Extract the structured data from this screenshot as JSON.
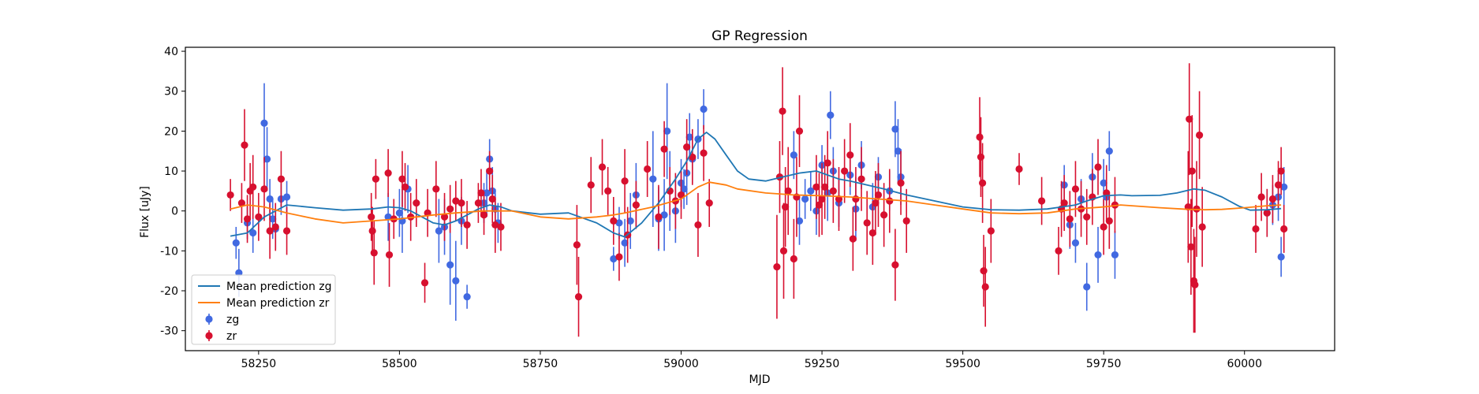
{
  "chart_data": {
    "type": "scatter",
    "title": "GP Regression",
    "xlabel": "MJD",
    "ylabel": "Flux [uJy]",
    "xlim": [
      58120,
      60160
    ],
    "ylim": [
      -35,
      41
    ],
    "x_ticks": [
      58250,
      58500,
      58750,
      59000,
      59250,
      59500,
      59750,
      60000
    ],
    "y_ticks": [
      -30,
      -20,
      -10,
      0,
      10,
      20,
      30,
      40
    ],
    "grid": false,
    "legend_position": "lower-left",
    "lines": [
      {
        "name": "Mean prediction zg",
        "color": "#1f77b4",
        "x": [
          58200,
          58230,
          58260,
          58300,
          58350,
          58400,
          58450,
          58480,
          58500,
          58520,
          58540,
          58560,
          58580,
          58600,
          58620,
          58640,
          58660,
          58680,
          58700,
          58750,
          58800,
          58850,
          58880,
          58900,
          58930,
          58960,
          58990,
          59010,
          59030,
          59045,
          59060,
          59080,
          59100,
          59120,
          59150,
          59180,
          59210,
          59240,
          59260,
          59280,
          59300,
          59330,
          59360,
          59400,
          59450,
          59500,
          59550,
          59600,
          59650,
          59700,
          59720,
          59750,
          59780,
          59800,
          59850,
          59880,
          59910,
          59930,
          59960,
          59990,
          60010,
          60040,
          60065
        ],
        "y": [
          -6.3,
          -5.5,
          -1.5,
          1.5,
          0.8,
          0.2,
          0.5,
          1.0,
          0.8,
          0.0,
          -1.5,
          -3.0,
          -3.5,
          -2.5,
          -1.0,
          0.5,
          1.5,
          1.0,
          0.0,
          -0.8,
          -0.5,
          -3.0,
          -5.5,
          -6.5,
          -3.0,
          2.0,
          8.0,
          12.5,
          18.0,
          19.7,
          18.0,
          14.0,
          10.0,
          8.0,
          7.5,
          8.5,
          9.5,
          10.0,
          9.0,
          8.0,
          7.5,
          6.5,
          5.5,
          4.0,
          2.5,
          1.0,
          0.3,
          0.2,
          0.5,
          1.5,
          2.5,
          3.8,
          4.0,
          3.8,
          3.9,
          4.5,
          5.5,
          5.2,
          3.5,
          1.2,
          0.2,
          0.3,
          0.6
        ]
      },
      {
        "name": "Mean prediction zr",
        "color": "#ff7f0e",
        "x": [
          58200,
          58230,
          58260,
          58300,
          58350,
          58400,
          58450,
          58500,
          58530,
          58560,
          58600,
          58650,
          58700,
          58750,
          58800,
          58850,
          58880,
          58900,
          58950,
          59000,
          59030,
          59050,
          59080,
          59100,
          59150,
          59200,
          59250,
          59300,
          59350,
          59400,
          59450,
          59500,
          59550,
          59600,
          59650,
          59700,
          59750,
          59780,
          59800,
          59850,
          59900,
          59930,
          59960,
          60000,
          60040,
          60065
        ],
        "y": [
          0.5,
          1.5,
          1.0,
          -0.5,
          -2.0,
          -3.0,
          -2.5,
          -2.0,
          -1.5,
          -1.0,
          -0.5,
          0.0,
          0.0,
          -1.5,
          -2.0,
          -1.5,
          -1.0,
          -0.5,
          1.0,
          3.0,
          6.0,
          7.2,
          6.5,
          5.5,
          4.5,
          4.0,
          3.8,
          3.5,
          3.0,
          2.5,
          1.5,
          0.5,
          -0.5,
          -0.7,
          -0.5,
          0.5,
          1.0,
          1.5,
          1.3,
          0.8,
          0.4,
          0.3,
          0.4,
          0.8,
          1.3,
          1.5
        ]
      }
    ],
    "series": [
      {
        "name": "zg",
        "color": "#4169e1",
        "x": [
          58210,
          58215,
          58230,
          58240,
          58260,
          58265,
          58270,
          58275,
          58280,
          58290,
          58300,
          58480,
          58500,
          58505,
          58515,
          58570,
          58580,
          58590,
          58600,
          58610,
          58620,
          58650,
          58655,
          58660,
          58665,
          58670,
          58675,
          58880,
          58890,
          58900,
          58910,
          58920,
          58950,
          58960,
          58970,
          58975,
          58980,
          58990,
          59000,
          59005,
          59010,
          59015,
          59020,
          59030,
          59040,
          59200,
          59210,
          59220,
          59230,
          59240,
          59250,
          59260,
          59265,
          59270,
          59280,
          59300,
          59310,
          59320,
          59340,
          59350,
          59370,
          59380,
          59385,
          59390,
          59680,
          59690,
          59700,
          59710,
          59720,
          59730,
          59740,
          59750,
          59755,
          59760,
          59770,
          60040,
          60050,
          60060,
          60065,
          60070
        ],
        "y": [
          -8.0,
          -15.5,
          -3.0,
          -5.5,
          22.0,
          13.0,
          3.0,
          -2.0,
          -4.5,
          3.0,
          3.5,
          -1.5,
          -0.5,
          -2.5,
          5.5,
          -5.0,
          -4.0,
          -13.5,
          -17.5,
          -2.5,
          -21.5,
          2.0,
          4.5,
          13.0,
          5.0,
          0.5,
          -3.0,
          -12.0,
          -3.0,
          -8.0,
          -2.5,
          4.0,
          8.0,
          -2.0,
          -1.0,
          20.0,
          5.0,
          0.0,
          7.0,
          5.5,
          9.5,
          18.5,
          13.0,
          18.0,
          25.5,
          14.0,
          -2.5,
          3.0,
          5.0,
          0.0,
          11.5,
          4.5,
          24.0,
          10.0,
          2.0,
          9.0,
          0.5,
          11.5,
          1.0,
          8.5,
          5.0,
          20.5,
          15.0,
          8.5,
          6.5,
          -3.5,
          -8.0,
          3.0,
          -19.0,
          8.5,
          -11.0,
          7.0,
          3.5,
          15.0,
          -11.0,
          -0.5,
          1.5,
          3.5,
          -11.5,
          6.0
        ],
        "err": [
          4.0,
          6.0,
          4.0,
          5.0,
          10.0,
          8.0,
          5.0,
          5.0,
          5.0,
          4.0,
          4.0,
          6.0,
          6.0,
          8.0,
          6.0,
          8.0,
          7.0,
          10.0,
          10.0,
          6.0,
          3.0,
          5.0,
          6.0,
          5.0,
          6.0,
          5.0,
          5.0,
          3.0,
          4.0,
          6.0,
          7.0,
          8.0,
          12.0,
          8.0,
          9.0,
          12.0,
          10.0,
          8.0,
          6.0,
          5.0,
          8.0,
          6.0,
          6.0,
          5.0,
          5.0,
          6.0,
          6.0,
          5.0,
          5.0,
          6.0,
          5.0,
          7.0,
          6.0,
          6.0,
          6.0,
          5.0,
          8.0,
          6.0,
          6.0,
          5.0,
          5.0,
          7.0,
          8.0,
          7.0,
          5.0,
          6.0,
          5.0,
          5.0,
          6.0,
          6.0,
          7.0,
          6.0,
          6.0,
          5.0,
          6.0,
          6.0,
          5.0,
          6.0,
          5.0,
          5.0
        ]
      },
      {
        "name": "zr",
        "color": "#d7102f",
        "x": [
          58200,
          58220,
          58225,
          58230,
          58235,
          58240,
          58250,
          58260,
          58270,
          58280,
          58290,
          58300,
          58450,
          58452,
          58455,
          58458,
          58480,
          58482,
          58490,
          58505,
          58510,
          58520,
          58530,
          58545,
          58550,
          58565,
          58580,
          58590,
          58600,
          58610,
          58620,
          58640,
          58645,
          58650,
          58660,
          58665,
          58670,
          58680,
          58815,
          58818,
          58840,
          58860,
          58870,
          58880,
          58890,
          58900,
          58905,
          58920,
          58940,
          58960,
          58970,
          58980,
          58990,
          59000,
          59010,
          59020,
          59030,
          59040,
          59050,
          59170,
          59175,
          59180,
          59182,
          59185,
          59190,
          59200,
          59205,
          59210,
          59240,
          59245,
          59250,
          59255,
          59260,
          59270,
          59280,
          59290,
          59300,
          59305,
          59310,
          59320,
          59330,
          59340,
          59345,
          59350,
          59360,
          59370,
          59380,
          59390,
          59400,
          59530,
          59532,
          59535,
          59537,
          59540,
          59550,
          59600,
          59640,
          59670,
          59675,
          59680,
          59690,
          59700,
          59710,
          59720,
          59730,
          59740,
          59750,
          59755,
          59760,
          59770,
          59900,
          59902,
          59905,
          59907,
          59910,
          59912,
          59915,
          59920,
          59925,
          60020,
          60030,
          60040,
          60050,
          60060,
          60065,
          60070
        ],
        "y": [
          4.0,
          2.0,
          16.5,
          -2.0,
          5.0,
          6.0,
          -1.5,
          5.5,
          -5.0,
          -4.0,
          8.0,
          -5.0,
          -1.5,
          -5.0,
          -10.5,
          8.0,
          9.5,
          -11.0,
          -2.0,
          8.0,
          6.0,
          -1.5,
          2.0,
          -18.0,
          -0.5,
          5.5,
          -1.5,
          0.5,
          2.5,
          2.0,
          -3.5,
          2.0,
          4.5,
          -1.0,
          10.0,
          3.0,
          -3.5,
          -4.0,
          -8.5,
          -21.5,
          6.5,
          11.0,
          5.0,
          -2.5,
          -11.5,
          7.5,
          -6.0,
          1.5,
          10.5,
          -1.5,
          15.5,
          5.0,
          2.5,
          4.0,
          16.0,
          13.5,
          -3.5,
          14.5,
          2.0,
          -14.0,
          8.5,
          25.0,
          -10.0,
          1.0,
          5.0,
          -12.0,
          3.5,
          20.0,
          6.0,
          1.5,
          3.0,
          6.0,
          12.0,
          5.0,
          3.0,
          10.0,
          14.0,
          -7.0,
          3.0,
          8.0,
          -3.0,
          -5.5,
          2.0,
          4.0,
          -1.0,
          2.5,
          -13.5,
          7.0,
          -2.5,
          18.5,
          13.5,
          7.0,
          -15.0,
          -19.0,
          -5.0,
          10.5,
          2.5,
          -10.0,
          0.5,
          2.0,
          -2.0,
          5.5,
          0.5,
          -1.5,
          3.5,
          11.0,
          -4.0,
          4.5,
          -2.5,
          1.5,
          1.0,
          23.0,
          -9.0,
          10.0,
          -17.5,
          -18.5,
          0.5,
          19.0,
          -4.0,
          -4.5,
          3.5,
          -0.5,
          3.0,
          6.5,
          10.0,
          -4.5
        ],
        "err": [
          4.0,
          5.0,
          9.0,
          6.0,
          7.0,
          8.0,
          6.0,
          8.0,
          7.0,
          6.0,
          7.0,
          6.0,
          6.0,
          6.0,
          8.0,
          5.0,
          6.0,
          8.0,
          5.0,
          7.0,
          6.0,
          6.0,
          6.0,
          5.0,
          6.0,
          7.0,
          6.0,
          6.0,
          5.0,
          6.0,
          6.0,
          5.0,
          6.0,
          5.0,
          5.0,
          6.0,
          7.0,
          6.0,
          10.0,
          10.0,
          7.0,
          7.0,
          6.0,
          6.0,
          6.0,
          8.0,
          7.0,
          6.0,
          7.0,
          8.0,
          7.0,
          6.0,
          7.0,
          6.0,
          7.0,
          7.0,
          8.0,
          7.0,
          6.0,
          13.0,
          9.0,
          11.0,
          12.0,
          10.0,
          11.0,
          10.0,
          10.0,
          9.0,
          8.0,
          8.0,
          9.0,
          8.0,
          8.0,
          8.0,
          8.0,
          8.0,
          8.0,
          8.0,
          8.0,
          8.0,
          8.0,
          8.0,
          8.0,
          8.0,
          8.0,
          8.0,
          9.0,
          8.0,
          8.0,
          10.0,
          10.0,
          10.0,
          9.0,
          10.0,
          8.0,
          4.0,
          6.0,
          6.0,
          7.0,
          7.0,
          7.0,
          7.0,
          7.0,
          7.0,
          7.0,
          7.0,
          7.0,
          7.0,
          7.0,
          7.0,
          14.0,
          14.0,
          12.0,
          14.0,
          13.0,
          12.0,
          12.0,
          11.0,
          10.0,
          6.0,
          6.0,
          6.0,
          6.0,
          6.0,
          6.0,
          6.0
        ]
      }
    ]
  }
}
